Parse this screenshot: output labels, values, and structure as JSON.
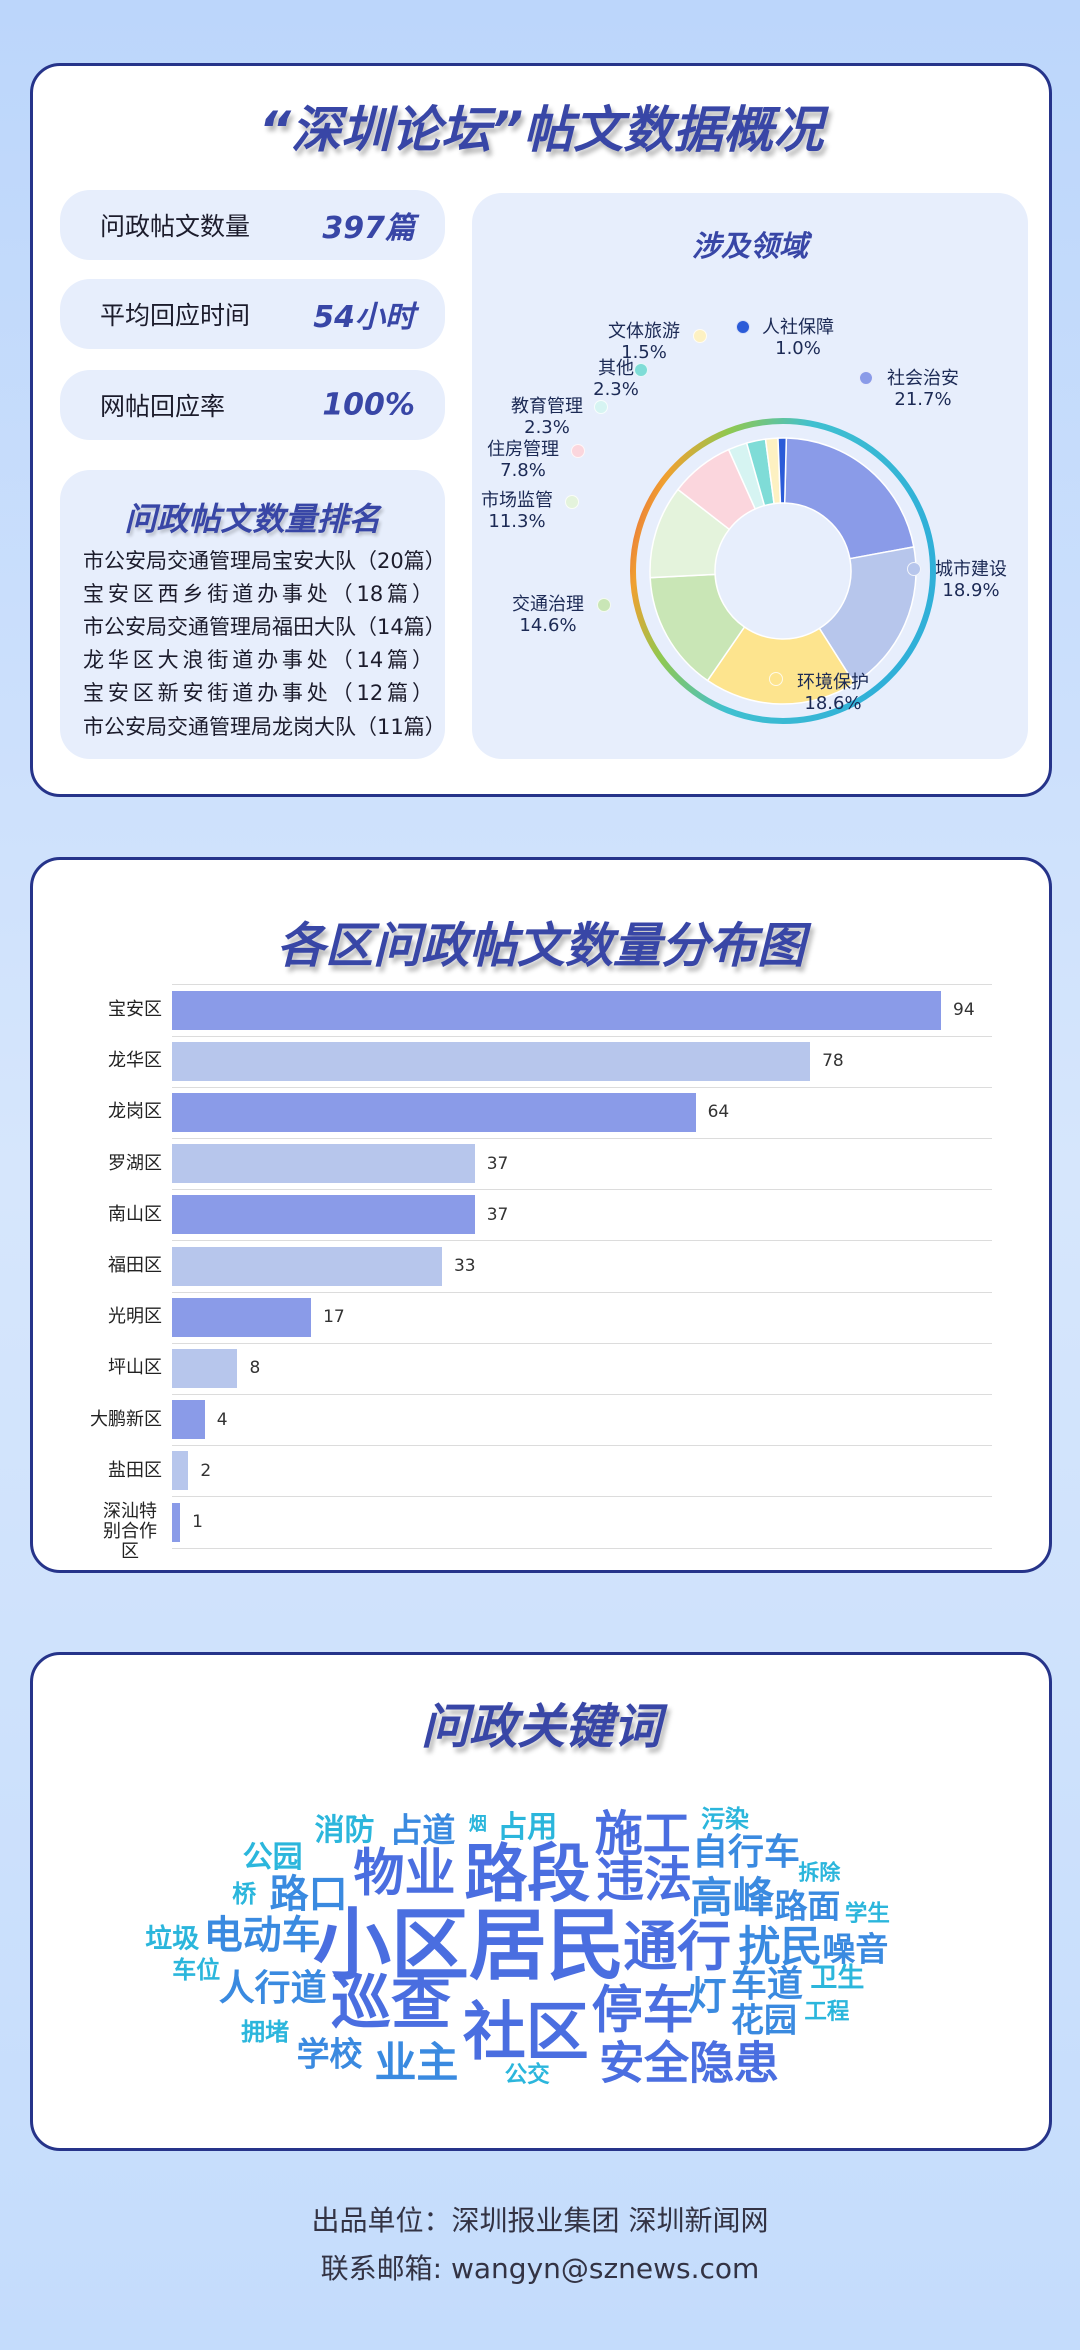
{
  "overview": {
    "title": "“深圳论坛”帖文数据概况",
    "stats": [
      {
        "label": "问政帖文数量",
        "value": "397篇"
      },
      {
        "label": "平均回应时间",
        "value": "54小时"
      },
      {
        "label": "网帖回应率",
        "value": "100%"
      }
    ],
    "ranking": {
      "title": "问政帖文数量排名",
      "items": [
        "市公安局交通管理局宝安大队（20篇）",
        "宝安区西乡街道办事处（18篇）",
        "市公安局交通管理局福田大队（14篇）",
        "龙华区大浪街道办事处（14篇）",
        "宝安区新安街道办事处（12篇）",
        "市公安局交通管理局龙岗大队（11篇）"
      ]
    }
  },
  "chart_data": [
    {
      "type": "pie",
      "title": "涉及领域",
      "donut": true,
      "categories": [
        "社会治安",
        "城市建设",
        "环境保护",
        "交通治理",
        "市场监管",
        "住房管理",
        "教育管理",
        "其他",
        "文体旅游",
        "人社保障"
      ],
      "values": [
        21.7,
        18.9,
        18.6,
        14.6,
        11.3,
        7.8,
        2.3,
        2.3,
        1.5,
        1.0
      ],
      "labels": [
        "21.7%",
        "18.9%",
        "18.6%",
        "14.6%",
        "11.3%",
        "7.8%",
        "2.3%",
        "2.3%",
        "1.5%",
        "1.0%"
      ],
      "colors": [
        "#8a9be8",
        "#b7c6ec",
        "#fde48e",
        "#c9e6b6",
        "#e4f3dc",
        "#fbd6dd",
        "#d6f4f2",
        "#7fdcd7",
        "#fdf1c2",
        "#2b5bd8"
      ]
    },
    {
      "type": "bar",
      "orientation": "horizontal",
      "title": "各区问政帖文数量分布图",
      "categories": [
        "宝安区",
        "龙华区",
        "龙岗区",
        "罗湖区",
        "南山区",
        "福田区",
        "光明区",
        "坪山区",
        "大鹏新区",
        "盐田区",
        "深汕特别合作区"
      ],
      "values": [
        94,
        78,
        64,
        37,
        37,
        33,
        17,
        8,
        4,
        2,
        1
      ],
      "xlim": [
        0,
        100
      ],
      "colors": [
        "#8a9be8",
        "#b7c6ec"
      ],
      "grid": true
    }
  ],
  "keywords": {
    "title": "问政关键词",
    "words": [
      "消防",
      "占道",
      "烟",
      "占用",
      "施工",
      "污染",
      "公园",
      "物业",
      "路段",
      "违法",
      "自行车",
      "拆除",
      "桥",
      "路口",
      "高峰",
      "路面",
      "学生",
      "垃圾",
      "电动车",
      "小区居民",
      "通行",
      "扰民",
      "噪音",
      "车位",
      "人行道",
      "巡查",
      "卫生",
      "车道",
      "灯",
      "停车",
      "社区",
      "工程",
      "花园",
      "拥堵",
      "学校",
      "业主",
      "公交",
      "安全隐患"
    ],
    "colors": [
      "#4a6ee0",
      "#2bb6dc"
    ]
  },
  "footer": {
    "producer": "出品单位：深圳报业集团  深圳新闻网",
    "email": "联系邮箱:  wangyn@sznews.com"
  }
}
